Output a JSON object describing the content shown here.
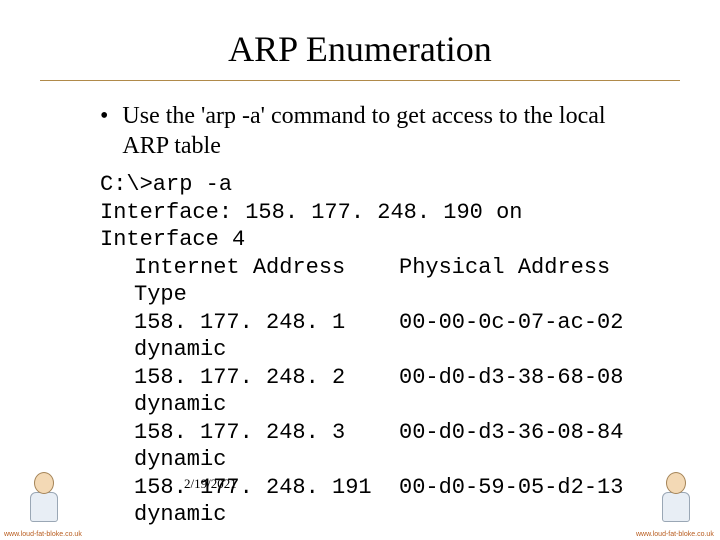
{
  "title": "ARP Enumeration",
  "bullet": "Use the 'arp -a' command to get access to the local ARP table",
  "code": {
    "cmd": "C:\\>arp -a",
    "iface": "Interface: 158. 177. 248. 190 on Interface 4",
    "hdr_ip": "Internet Address",
    "hdr_mac": "Physical Address",
    "hdr_type": "Type",
    "rows": [
      {
        "ip": "158. 177. 248. 1",
        "mac": "00-00-0c-07-ac-02",
        "type": "dynamic"
      },
      {
        "ip": "158. 177. 248. 2",
        "mac": "00-d0-d3-38-68-08",
        "type": "dynamic"
      },
      {
        "ip": "158. 177. 248. 3",
        "mac": "00-d0-d3-36-08-84",
        "type": "dynamic"
      },
      {
        "ip": "158. 177. 248. 191",
        "mac": "00-d0-59-05-d2-13",
        "type": "dynamic"
      }
    ]
  },
  "date": "2/19/2021",
  "footer_url": "www.loud-fat-bloke.co.uk",
  "colors": {
    "rule": "#b08a4a",
    "text": "#000000",
    "bg": "#ffffff"
  },
  "typography": {
    "title_fontsize": 36,
    "body_fontsize": 24,
    "code_fontsize": 22,
    "title_font": "Times New Roman",
    "code_font": "Courier New"
  }
}
